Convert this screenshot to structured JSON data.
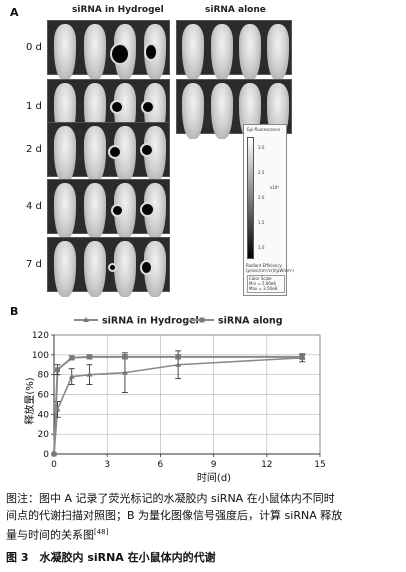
{
  "panel_a": {
    "letter": "A",
    "col_hydrogel": "siRNA in Hydrogel",
    "col_alone": "siRNA alone",
    "rows": [
      "0 d",
      "1 d",
      "2 d",
      "4 d",
      "7 d"
    ],
    "colorbar": {
      "header": "Epi-fluorescence",
      "ticks": [
        "3.0",
        "2.5",
        "2.0",
        "1.5",
        "1.0"
      ],
      "exponent": "x10⁸",
      "footer_1": "Radiant Efficiency",
      "footer_2": "(p/sec/cm²/sr)/(μW/cm²)",
      "scale_1": "Color Scale",
      "scale_2": "Min = 5.00e6",
      "scale_3": "Max = 3.50e8"
    }
  },
  "panel_b": {
    "letter": "B"
  },
  "chart_data": {
    "type": "line",
    "title": "",
    "xlabel": "时间(d)",
    "ylabel": "释放量(%)",
    "xlim": [
      0,
      15
    ],
    "ylim": [
      0,
      120
    ],
    "xticks": [
      0,
      3,
      6,
      9,
      12,
      15
    ],
    "yticks": [
      0,
      20,
      40,
      60,
      80,
      100,
      120
    ],
    "grid": true,
    "legend": "top",
    "series": [
      {
        "name": "siRNA in Hydrogel",
        "color": "#8a8a8a",
        "x": [
          0,
          0.2,
          1,
          2,
          4,
          7,
          14
        ],
        "y": [
          0,
          45,
          78,
          80,
          82,
          90,
          97
        ],
        "err": [
          0,
          8,
          8,
          10,
          20,
          14,
          4
        ]
      },
      {
        "name": "siRNA along",
        "color": "#8a8a8a",
        "x": [
          0,
          0.2,
          1,
          2,
          4,
          7,
          14
        ],
        "y": [
          0,
          85,
          97,
          98,
          98,
          98,
          98
        ],
        "err": [
          0,
          5,
          2,
          2,
          2,
          2,
          2
        ]
      }
    ]
  },
  "caption": {
    "line1": "图注：图中 A 记录了荧光标记的水凝胶内 siRNA 在小鼠体内不同时",
    "line2": "间点的代谢扫描对照图；B 为量化图像信号强度后，计算 siRNA 释放",
    "line3": "量与时间的关系图",
    "ref": "[48]",
    "figure_title": "图 3　水凝胶内 siRNA 在小鼠体内的代谢"
  }
}
